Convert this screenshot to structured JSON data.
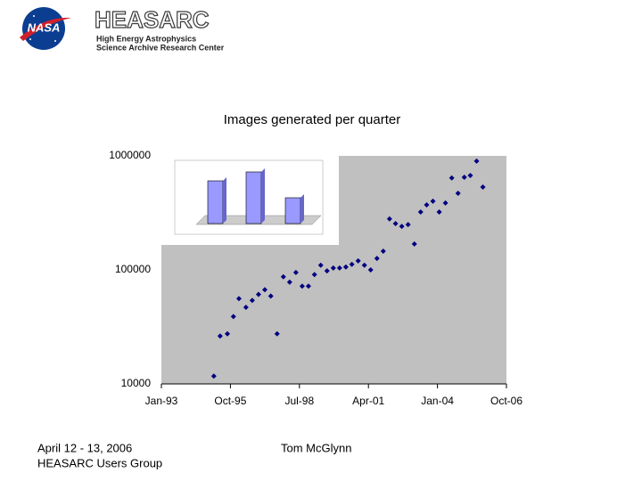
{
  "header": {
    "logo": "NASA",
    "title": "HEASARC",
    "subtitle_lines": [
      "High Energy Astrophysics",
      "Science Archive Research Center"
    ]
  },
  "chart_data": {
    "type": "scatter",
    "title": "Images generated per quarter",
    "x": [
      1995.09,
      1995.34,
      1995.63,
      1995.87,
      1996.09,
      1996.37,
      1996.62,
      1996.87,
      1997.12,
      1997.36,
      1997.61,
      1997.86,
      1998.11,
      1998.36,
      1998.61,
      1998.86,
      1999.1,
      1999.35,
      1999.6,
      1999.85,
      2000.1,
      2000.35,
      2000.59,
      2000.84,
      2001.09,
      2001.34,
      2001.59,
      2001.84,
      2002.09,
      2002.33,
      2002.58,
      2002.83,
      2003.08,
      2003.33,
      2003.57,
      2003.82,
      2004.07,
      2004.32,
      2004.57,
      2004.82,
      2005.07,
      2005.31,
      2005.56,
      2005.81
    ],
    "values": [
      11700,
      26300,
      27500,
      39000,
      56000,
      47000,
      54000,
      61000,
      67000,
      59000,
      27500,
      87000,
      78000,
      95000,
      72000,
      72000,
      91000,
      110000,
      98000,
      104000,
      104000,
      106000,
      112000,
      120000,
      110000,
      100000,
      126000,
      146000,
      280000,
      255000,
      241000,
      250000,
      169000,
      322000,
      372000,
      400000,
      322000,
      386000,
      640000,
      470000,
      650000,
      673000,
      900000,
      533000
    ],
    "color": "#000080",
    "plot_background": "#c0c0c0",
    "log_scale": true,
    "grid": false,
    "xlim": [
      1993,
      2006.75
    ],
    "xticks": [
      {
        "value": 1993,
        "label": "Jan-93"
      },
      {
        "value": 1995.75,
        "label": "Oct-95"
      },
      {
        "value": 1998.5,
        "label": "Jul-98"
      },
      {
        "value": 2001.25,
        "label": "Apr-01"
      },
      {
        "value": 2004,
        "label": "Jan-04"
      },
      {
        "value": 2006.75,
        "label": "Oct-06"
      }
    ],
    "ylim": [
      10000,
      1000000
    ],
    "yticks": [
      10000,
      100000,
      1000000
    ]
  },
  "footer": {
    "date": "April 12 - 13, 2006",
    "event": "HEASARC Users Group",
    "author": "Tom McGlynn"
  }
}
